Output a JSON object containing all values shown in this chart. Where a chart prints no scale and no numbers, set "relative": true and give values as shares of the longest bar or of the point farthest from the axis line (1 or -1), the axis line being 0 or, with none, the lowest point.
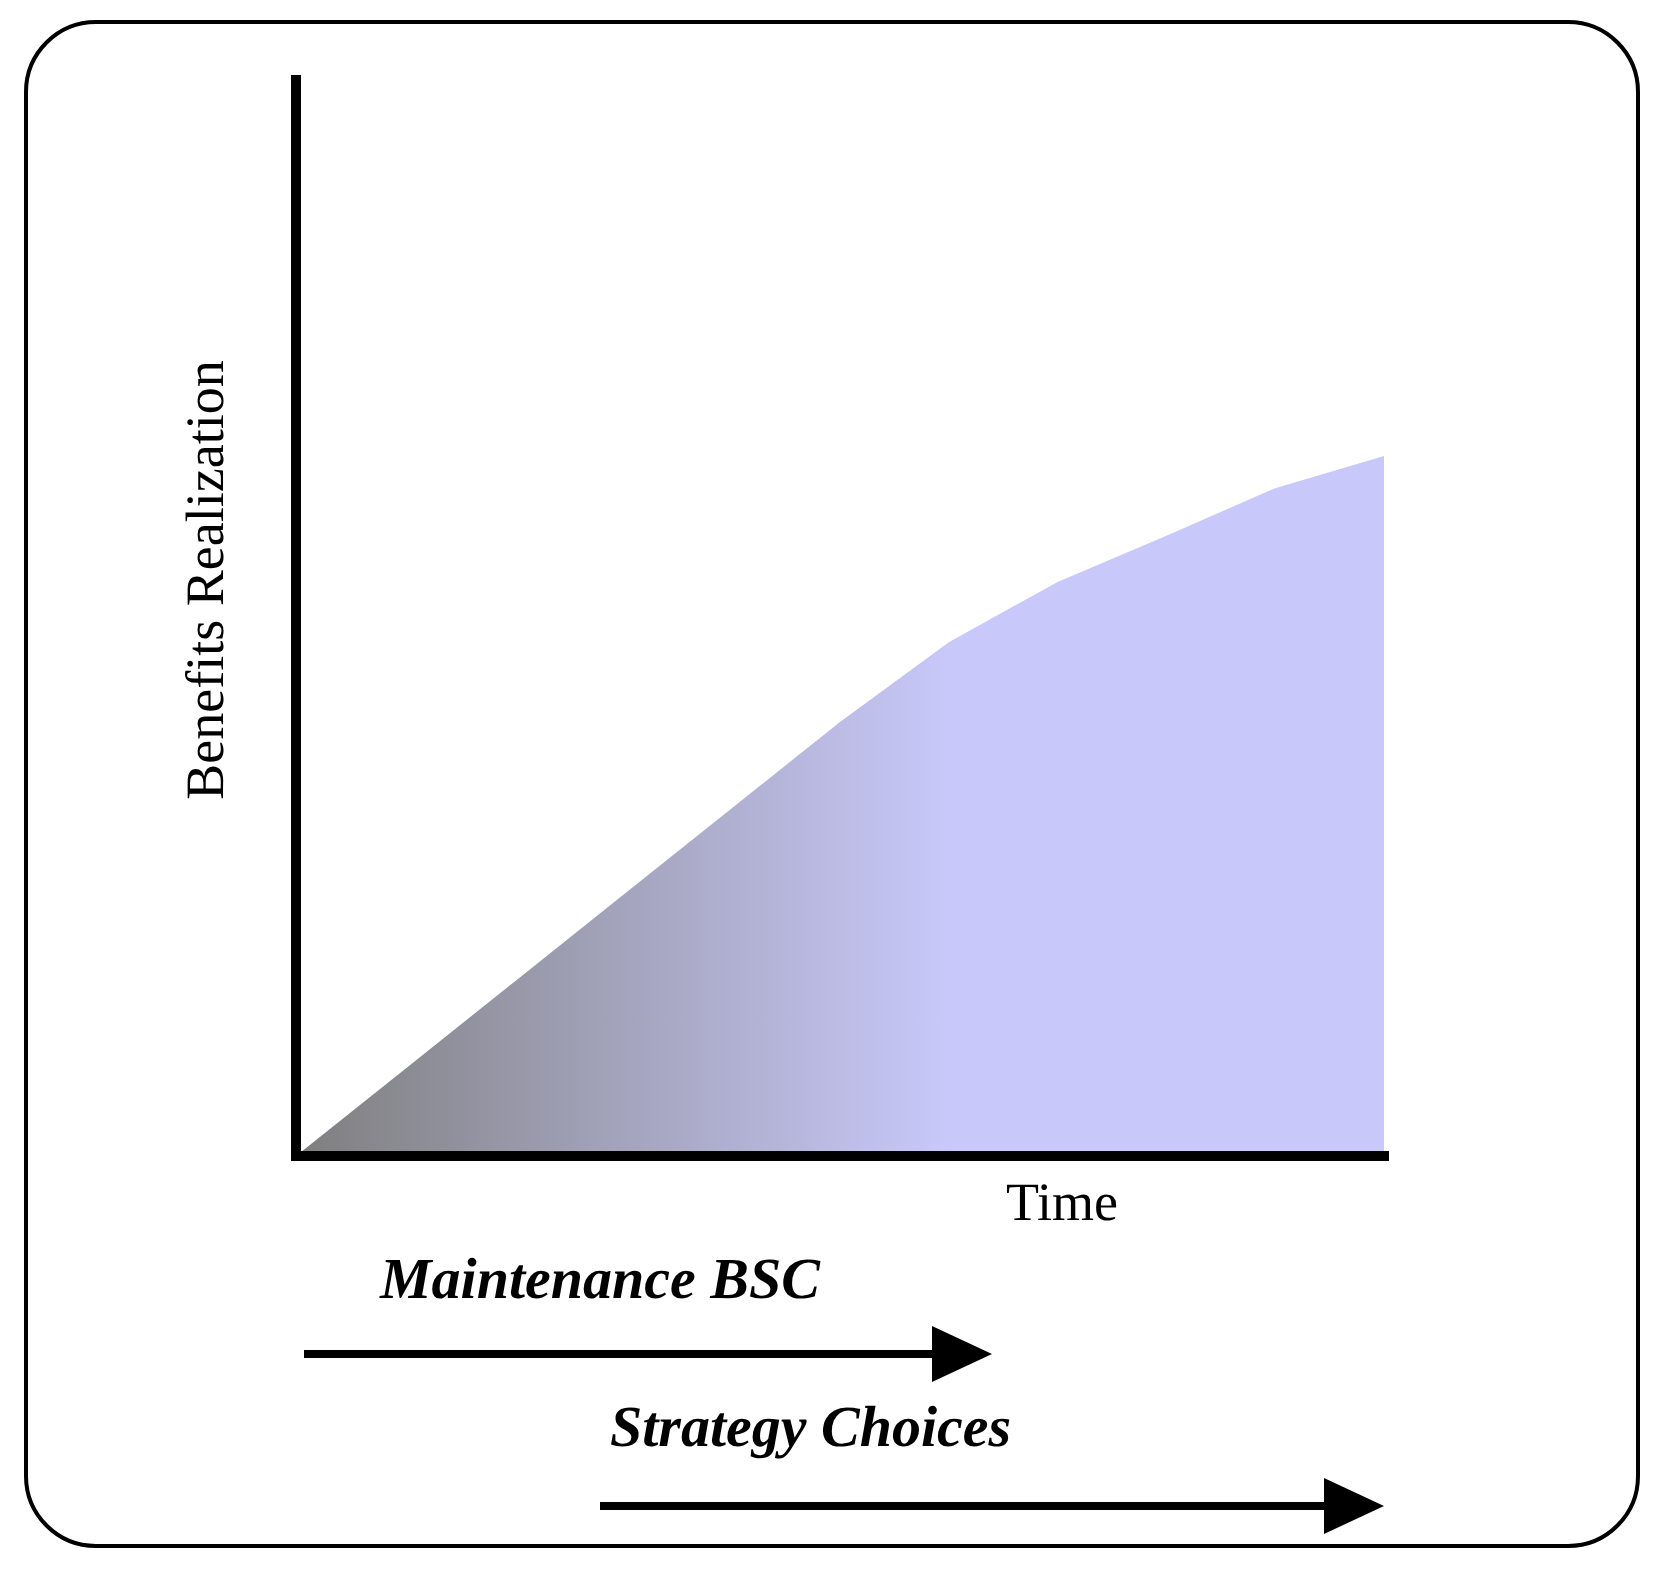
{
  "chart_data": {
    "type": "area",
    "relative": true,
    "xlabel": "Time",
    "ylabel": "Benefits Realization",
    "categories": [
      null,
      null,
      null,
      null,
      null,
      null,
      null,
      null,
      null,
      null,
      null
    ],
    "series": [
      {
        "color": "#c8c8fa",
        "values": [
          0,
          0.124,
          0.248,
          0.372,
          0.496,
          0.62,
          0.734,
          0.82,
          0.886,
          0.954,
          1
        ]
      }
    ],
    "annotations": [
      "Maintenance BSC",
      "Strategy Choices"
    ],
    "legend": false
  }
}
